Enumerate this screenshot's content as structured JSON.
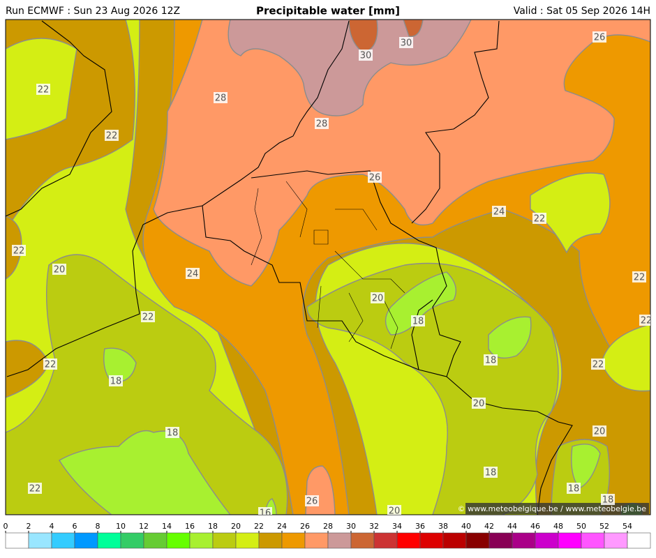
{
  "header": {
    "run": "Run ECMWF : Sun 23 Aug 2026 12Z",
    "title": "Precipitable water [mm]",
    "valid": "Valid : Sat 05 Sep 2026 14H"
  },
  "map": {
    "contour_labels": [
      22,
      22,
      28,
      28,
      30,
      30,
      26,
      26,
      24,
      22,
      22,
      20,
      24,
      22,
      22,
      20,
      22,
      18,
      18,
      22,
      18,
      22,
      20,
      18,
      20,
      18,
      22,
      18,
      26,
      16,
      18,
      20
    ]
  },
  "legend": {
    "ticks": [
      0,
      2,
      4,
      6,
      8,
      10,
      12,
      14,
      16,
      18,
      20,
      22,
      24,
      26,
      28,
      30,
      32,
      34,
      36,
      38,
      40,
      42,
      44,
      46,
      48,
      50,
      52,
      54
    ],
    "colors": [
      "#ffffff",
      "#99e6ff",
      "#33ccff",
      "#0099ff",
      "#00ff99",
      "#33cc66",
      "#66cc33",
      "#66ff00",
      "#a8f030",
      "#bbcc11",
      "#d4ee14",
      "#cc9900",
      "#ee9900",
      "#ff9966",
      "#cc9999",
      "#cc6633",
      "#cc3333",
      "#ff0000",
      "#dd0000",
      "#bb0000",
      "#880000",
      "#880055",
      "#aa0088",
      "#cc00cc",
      "#ff00ff",
      "#ff55ff",
      "#ff99ff",
      "#ffffff"
    ]
  },
  "footer": {
    "copyright": "© www.meteobelgique.be / www.meteobelgie.be"
  }
}
